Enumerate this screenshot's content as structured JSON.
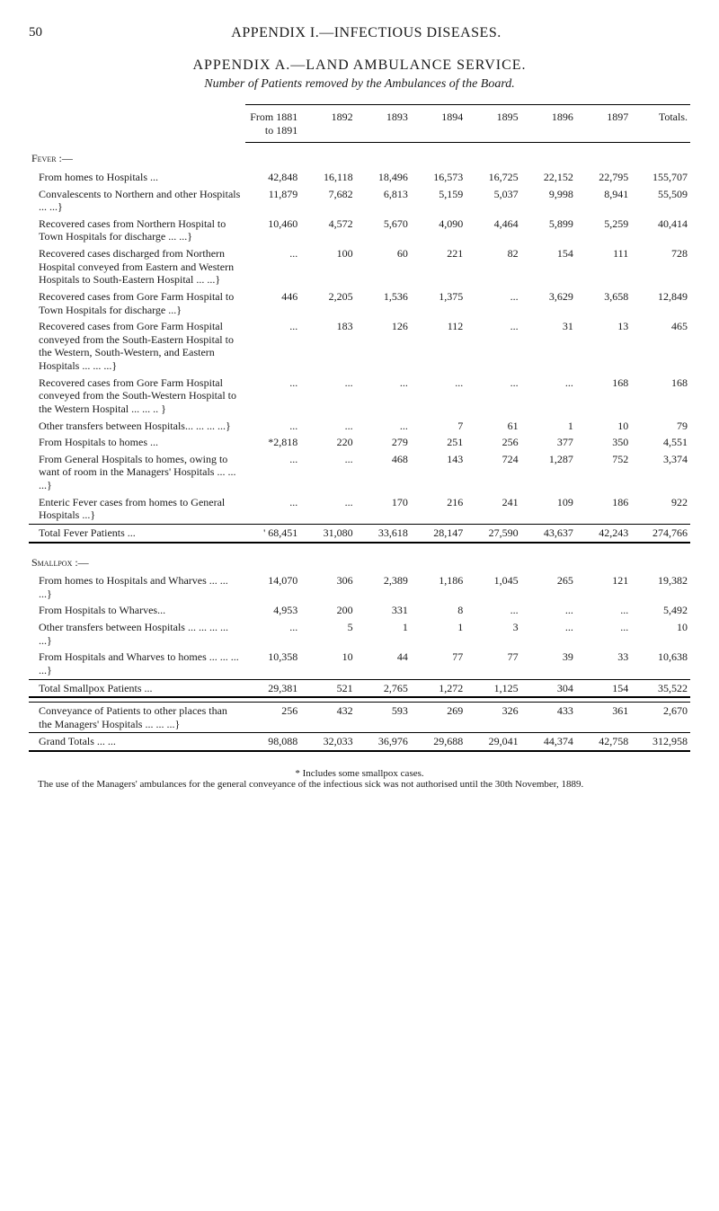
{
  "page_number": "50",
  "running_title": "APPENDIX I.—INFECTIOUS DISEASES.",
  "section_title": "APPENDIX A.—LAND AMBULANCE SERVICE.",
  "table_caption": "Number of Patients removed by the Ambulances of the Board.",
  "columns": {
    "c0": "From 1881 to 1891",
    "c1": "1892",
    "c2": "1893",
    "c3": "1894",
    "c4": "1895",
    "c5": "1896",
    "c6": "1897",
    "c7": "Totals."
  },
  "fever": {
    "heading": "Fever :—",
    "rows": [
      {
        "label": "From homes to Hospitals   ...",
        "v": [
          "42,848",
          "16,118",
          "18,496",
          "16,573",
          "16,725",
          "22,152",
          "22,795",
          "155,707"
        ]
      },
      {
        "label": "Convalescents to Northern and other Hospitals ...   ...}",
        "v": [
          "11,879",
          "7,682",
          "6,813",
          "5,159",
          "5,037",
          "9,998",
          "8,941",
          "55,509"
        ]
      },
      {
        "label": "Recovered cases from Northern Hospital to Town Hospitals for discharge   ...   ...}",
        "v": [
          "10,460",
          "4,572",
          "5,670",
          "4,090",
          "4,464",
          "5,899",
          "5,259",
          "40,414"
        ]
      },
      {
        "label": "Recovered cases discharged from Northern Hospital conveyed from Eastern and Western Hospitals to South-Eastern Hospital   ...   ...}",
        "v": [
          "...",
          "100",
          "60",
          "221",
          "82",
          "154",
          "111",
          "728"
        ]
      },
      {
        "label": "Recovered cases from Gore Farm Hospital to Town Hospitals for discharge   ...}",
        "v": [
          "446",
          "2,205",
          "1,536",
          "1,375",
          "...",
          "3,629",
          "3,658",
          "12,849"
        ]
      },
      {
        "label": "Recovered cases from Gore Farm Hospital conveyed from the South-Eastern Hospital to the Western, South-Western, and Eastern Hospitals   ...   ...   ...}",
        "v": [
          "...",
          "183",
          "126",
          "112",
          "...",
          "31",
          "13",
          "465"
        ]
      },
      {
        "label": "Recovered cases from Gore Farm Hospital conveyed from the South-Western Hospital to the Western Hospital   ...   ...   ..   }",
        "v": [
          "...",
          "...",
          "...",
          "...",
          "...",
          "...",
          "168",
          "168"
        ]
      },
      {
        "label": "Other transfers between Hospitals...   ...   ...   ...}",
        "v": [
          "...",
          "...",
          "...",
          "7",
          "61",
          "1",
          "10",
          "79"
        ]
      },
      {
        "label": "From Hospitals to homes   ...",
        "v": [
          "*2,818",
          "220",
          "279",
          "251",
          "256",
          "377",
          "350",
          "4,551"
        ]
      },
      {
        "label": "From General Hospitals to homes, owing to want of room in the Managers' Hospitals   ...   ...   ...}",
        "v": [
          "...",
          "...",
          "468",
          "143",
          "724",
          "1,287",
          "752",
          "3,374"
        ]
      },
      {
        "label": "Enteric Fever cases from homes to General Hospitals   ...}",
        "v": [
          "...",
          "...",
          "170",
          "216",
          "241",
          "109",
          "186",
          "922"
        ]
      }
    ],
    "total": {
      "label": "Total Fever Patients   ...",
      "v": [
        "' 68,451",
        "31,080",
        "33,618",
        "28,147",
        "27,590",
        "43,637",
        "42,243",
        "274,766"
      ]
    }
  },
  "smallpox": {
    "heading": "Smallpox :—",
    "rows": [
      {
        "label": "From homes to Hospitals and Wharves   ...   ...   ...}",
        "v": [
          "14,070",
          "306",
          "2,389",
          "1,186",
          "1,045",
          "265",
          "121",
          "19,382"
        ]
      },
      {
        "label": "From Hospitals to Wharves...",
        "v": [
          "4,953",
          "200",
          "331",
          "8",
          "...",
          "...",
          "...",
          "5,492"
        ]
      },
      {
        "label": "Other transfers between Hospitals   ...   ...   ...   ...   ...}",
        "v": [
          "...",
          "5",
          "1",
          "1",
          "3",
          "...",
          "...",
          "10"
        ]
      },
      {
        "label": "From Hospitals and Wharves to homes   ...   ...   ...   ...}",
        "v": [
          "10,358",
          "10",
          "44",
          "77",
          "77",
          "39",
          "33",
          "10,638"
        ]
      }
    ],
    "total": {
      "label": "Total Smallpox Patients   ...",
      "v": [
        "29,381",
        "521",
        "2,765",
        "1,272",
        "1,125",
        "304",
        "154",
        "35,522"
      ]
    }
  },
  "conveyance": {
    "label": "Conveyance of Patients to other places than the Managers' Hospitals   ...   ...   ...}",
    "v": [
      "256",
      "432",
      "593",
      "269",
      "326",
      "433",
      "361",
      "2,670"
    ]
  },
  "grand": {
    "label": "Grand Totals     ...     ...",
    "v": [
      "98,088",
      "32,033",
      "36,976",
      "29,688",
      "29,041",
      "44,374",
      "42,758",
      "312,958"
    ]
  },
  "footnote_star": "* Includes some smallpox cases.",
  "footnote_main": "The use of the Managers' ambulances for the general conveyance of the infectious sick was not authorised until the 30th November, 1889."
}
